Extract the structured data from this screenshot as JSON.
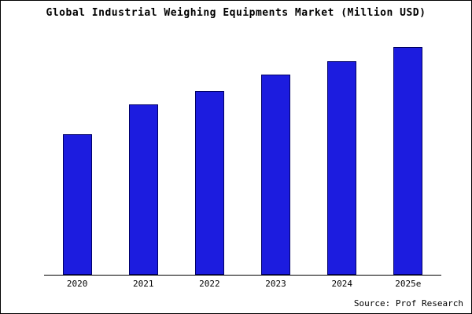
{
  "title": "Global Industrial Weighing Equipments Market (Million USD)",
  "source": "Source: Prof Research",
  "colors": {
    "bar_fill": "#1c1cdf",
    "bar_edge": "#000066",
    "frame_border": "#000000",
    "background": "#ffffff"
  },
  "chart_data": {
    "type": "bar",
    "title": "Global Industrial Weighing Equipments Market (Million USD)",
    "categories": [
      "2020",
      "2021",
      "2022",
      "2023",
      "2024",
      "2025e"
    ],
    "values": [
      62,
      75,
      81,
      88,
      94,
      100
    ],
    "xlabel": "",
    "ylabel": "",
    "ylim": [
      0,
      105
    ],
    "grid": false,
    "legend": false,
    "value_scale": "relative-index-max-100 (no y-axis labels shown in chart)"
  }
}
